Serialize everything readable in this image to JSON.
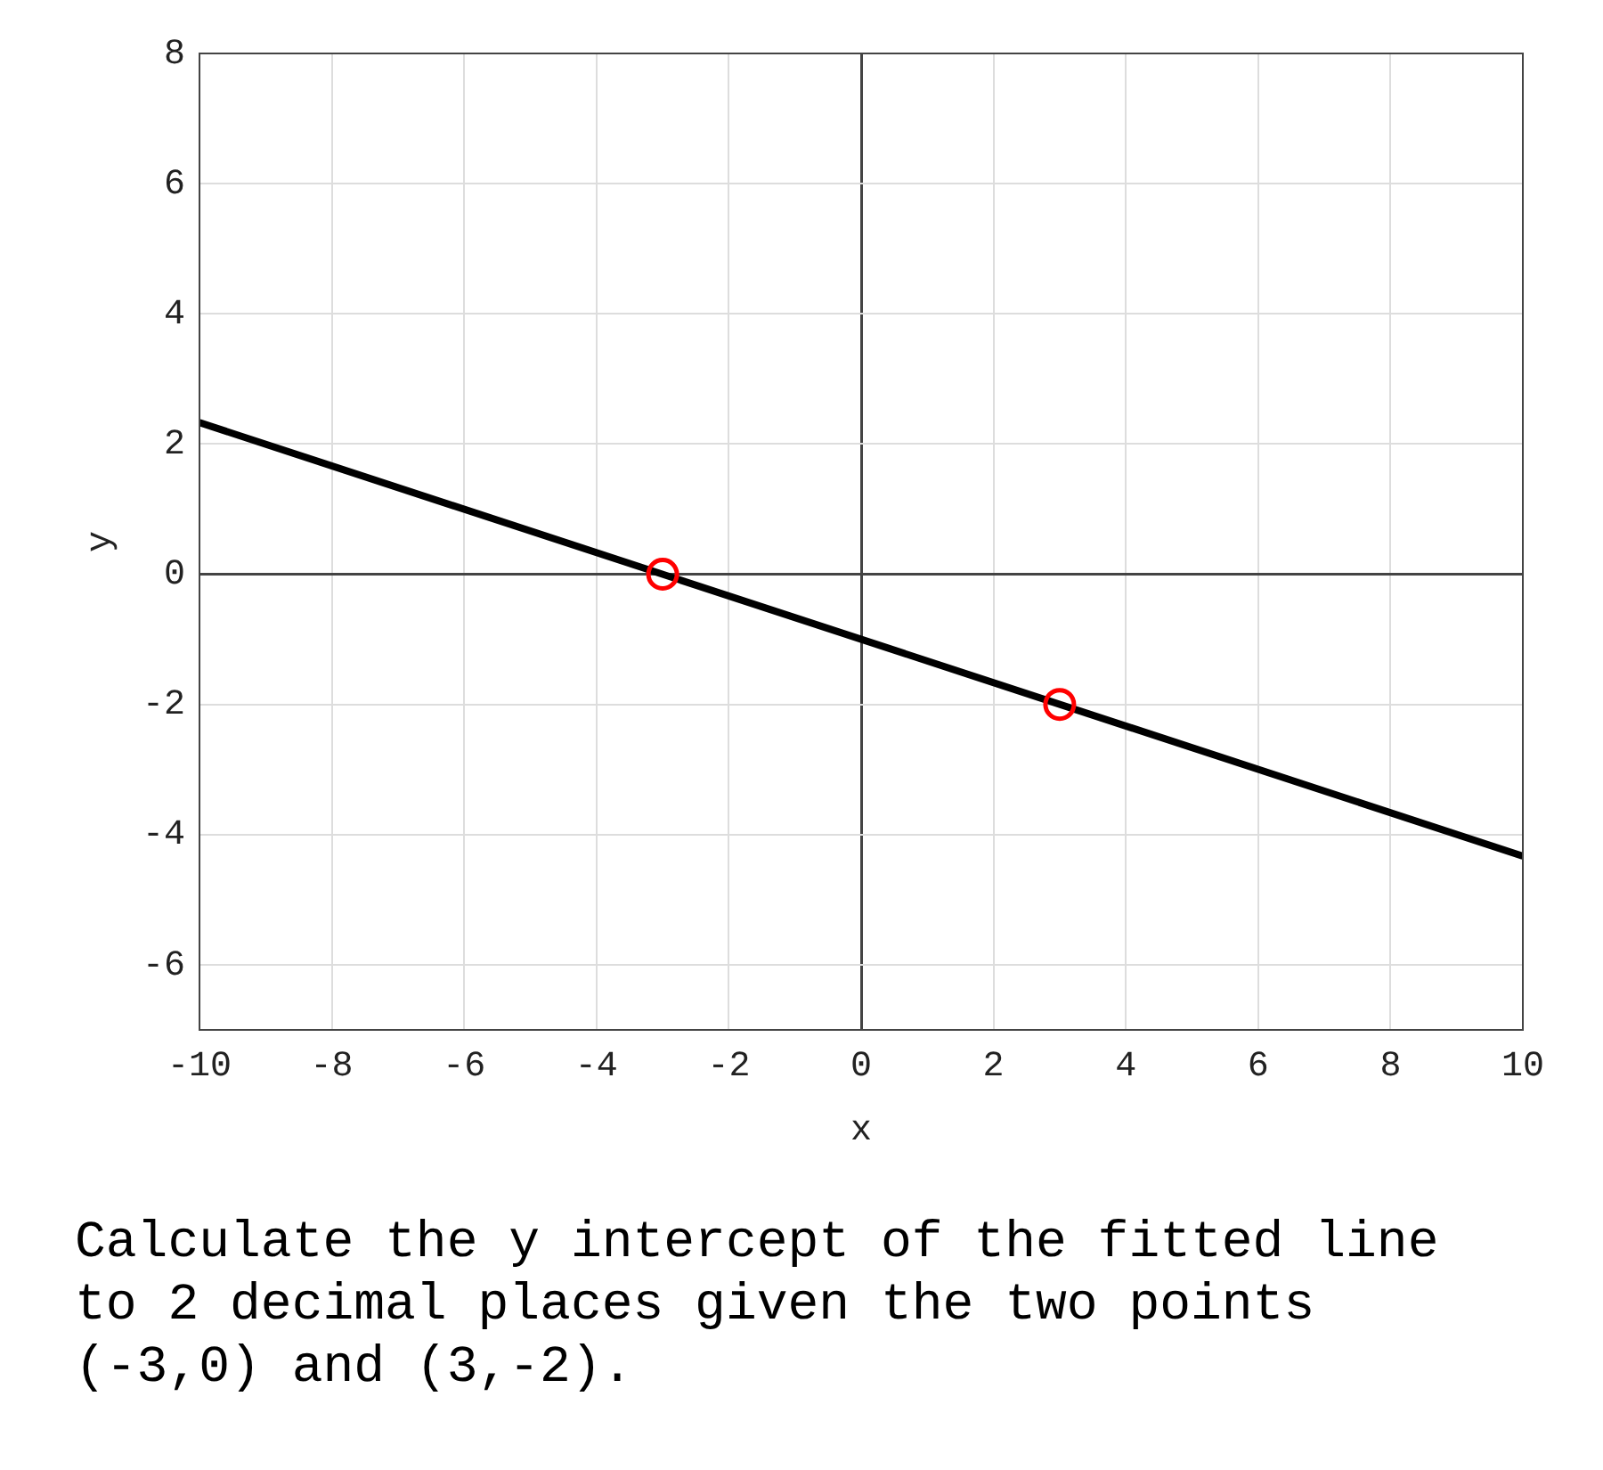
{
  "chart_data": {
    "type": "line",
    "xlabel": "x",
    "ylabel": "y",
    "xlim": [
      -10,
      10
    ],
    "xticks": [
      -10,
      -8,
      -6,
      -4,
      -2,
      0,
      2,
      4,
      6,
      8,
      10
    ],
    "ylim": [
      -7,
      8
    ],
    "yticks": [
      -6,
      -4,
      -2,
      0,
      2,
      4,
      6,
      8
    ],
    "grid": true,
    "series": [
      {
        "type": "line",
        "x": [
          -10,
          10
        ],
        "values": [
          2.33,
          -4.33
        ],
        "color": "#000000",
        "marker": "none"
      },
      {
        "type": "scatter",
        "x": [
          -3,
          3
        ],
        "values": [
          0,
          -2
        ],
        "color": "#ff0000",
        "marker": "circle"
      }
    ],
    "annotations": [
      "Calculate the y intercept of the fitted line to 2 decimal places given the two points (-3,0) and (3,-2)."
    ]
  }
}
